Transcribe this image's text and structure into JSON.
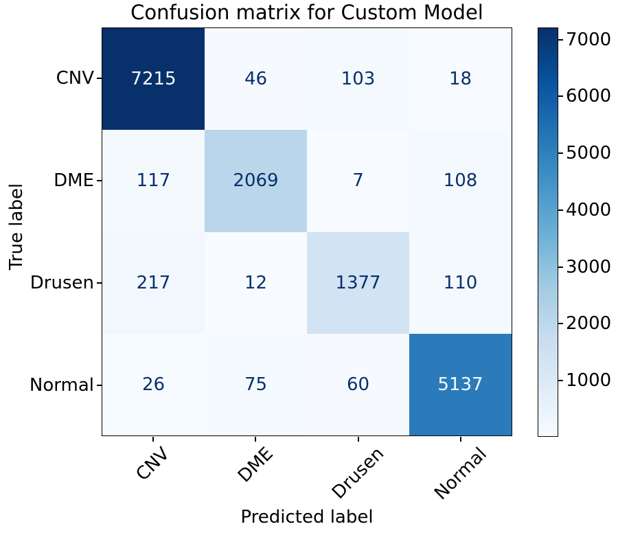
{
  "figure": {
    "title": "Confusion matrix for Custom Model",
    "xlabel": "Predicted label",
    "ylabel": "True label"
  },
  "chart_data": {
    "type": "heatmap",
    "title": "Confusion matrix for Custom Model",
    "xlabel": "Predicted label",
    "ylabel": "True label",
    "x_categories": [
      "CNV",
      "DME",
      "Drusen",
      "Normal"
    ],
    "y_categories": [
      "CNV",
      "DME",
      "Drusen",
      "Normal"
    ],
    "matrix": [
      [
        7215,
        46,
        103,
        18
      ],
      [
        117,
        2069,
        7,
        108
      ],
      [
        217,
        12,
        1377,
        110
      ],
      [
        26,
        75,
        60,
        5137
      ]
    ],
    "colormap": "Blues",
    "colormap_stops": [
      "#f7fbff",
      "#deebf7",
      "#c6dbef",
      "#9ecae1",
      "#6baed6",
      "#4292c6",
      "#2171b5",
      "#08519c",
      "#08306b"
    ],
    "colorbar_ticks": [
      1000,
      2000,
      3000,
      4000,
      5000,
      6000,
      7000
    ],
    "x_tick_rotation_deg": 45,
    "grid": false,
    "legend_position": "right-colorbar"
  }
}
